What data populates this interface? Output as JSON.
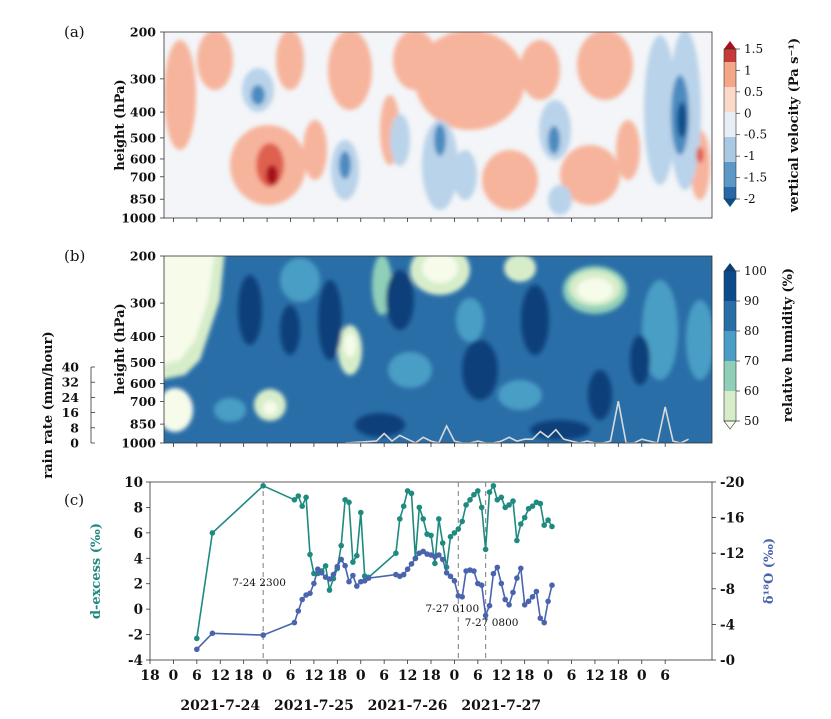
{
  "figure": {
    "panel_a_label": "(a)",
    "panel_b_label": "(b)",
    "panel_c_label": "(c)"
  },
  "chart_data": [
    {
      "id": "a",
      "type": "heatmap",
      "quantity": "vertical velocity",
      "ylabel": "height (hPa)",
      "yticks": [
        "200",
        "300",
        "400",
        "500",
        "600",
        "700",
        "850",
        "1000"
      ],
      "colorbar_label": "vertical velocity (Pa s⁻¹)",
      "colorbar_ticks": [
        "1.5",
        "1",
        "0.5",
        "0",
        "-0.5",
        "-1",
        "-1.5",
        "-2"
      ],
      "colorbar_range": [
        -2,
        1.5
      ],
      "colors": {
        "strong_up": "#0b4f8a",
        "up": "#4c8bc0",
        "weak_up": "#b9d3ea",
        "neutral": "#f3f5f8",
        "weak_down": "#f7b49c",
        "down": "#e0614f",
        "strong_down": "#a8101f"
      }
    },
    {
      "id": "b",
      "type": "heatmap",
      "quantity": "relative humidity",
      "ylabel": "height (hPa)",
      "yticks": [
        "200",
        "300",
        "400",
        "500",
        "600",
        "700",
        "850",
        "1000"
      ],
      "colorbar_label": "relative humidity (%)",
      "colorbar_ticks": [
        "100",
        "90",
        "80",
        "70",
        "60",
        "50"
      ],
      "colorbar_range": [
        50,
        100
      ],
      "rain_axis_label": "rain rate (mm/hour)",
      "rain_ticks": [
        "40",
        "32",
        "24",
        "16",
        "8",
        "0"
      ],
      "rain_range": [
        0,
        40
      ],
      "rain_series": {
        "x_hours": [
          44,
          48,
          52,
          54,
          56,
          58,
          60,
          62,
          64,
          66,
          68,
          70,
          72,
          74,
          76,
          78,
          80,
          82,
          84,
          86,
          88,
          90,
          92,
          94,
          96,
          98,
          100,
          102,
          104,
          106,
          108,
          110,
          112,
          114,
          116,
          118,
          120,
          122,
          124,
          126,
          128,
          130,
          132
        ],
        "values": [
          0,
          0.5,
          1,
          5,
          1,
          4,
          2,
          0,
          3,
          1,
          0,
          9,
          1,
          0,
          0,
          1,
          0,
          0,
          1,
          3,
          1,
          2,
          2,
          6,
          3,
          7,
          2,
          1,
          0,
          1,
          0,
          0,
          1,
          22,
          0,
          0,
          2,
          1,
          0,
          19,
          1,
          0,
          2
        ]
      },
      "colors": {
        "rh100": "#083f7a",
        "rh90": "#2a6ea8",
        "rh80": "#4a9ec5",
        "rh70": "#8fcfb8",
        "rh60": "#d7edca",
        "rh50": "#f6fbea",
        "rain_line": "#d9d9d9"
      }
    },
    {
      "id": "c",
      "type": "line",
      "y_left_label": "d-excess (‰)",
      "y_right_label": "δ¹⁸O (‰)",
      "ylim_left": [
        -4,
        10
      ],
      "ylim_right": [
        -20,
        0
      ],
      "yticks_left": [
        "10",
        "8",
        "6",
        "4",
        "2",
        "0",
        "-2",
        "-4"
      ],
      "yticks_right": [
        "-20",
        "-16",
        "-12",
        "-8",
        "-4",
        "-0"
      ],
      "xlim_hours": [
        -6,
        138
      ],
      "xticks": [
        {
          "h": -6,
          "label": "18"
        },
        {
          "h": 0,
          "label": "0"
        },
        {
          "h": 6,
          "label": "6"
        },
        {
          "h": 12,
          "label": "12"
        },
        {
          "h": 18,
          "label": "18"
        },
        {
          "h": 24,
          "label": "0"
        },
        {
          "h": 30,
          "label": "6"
        },
        {
          "h": 36,
          "label": "12"
        },
        {
          "h": 42,
          "label": "18"
        },
        {
          "h": 48,
          "label": "0"
        },
        {
          "h": 54,
          "label": "6"
        },
        {
          "h": 60,
          "label": "12"
        },
        {
          "h": 66,
          "label": "18"
        },
        {
          "h": 72,
          "label": "0"
        },
        {
          "h": 78,
          "label": "6"
        },
        {
          "h": 84,
          "label": "12"
        },
        {
          "h": 90,
          "label": "18"
        },
        {
          "h": 96,
          "label": "0"
        },
        {
          "h": 102,
          "label": "6"
        },
        {
          "h": 108,
          "label": "12"
        },
        {
          "h": 114,
          "label": "18"
        },
        {
          "h": 120,
          "label": "0"
        },
        {
          "h": 126,
          "label": "6"
        }
      ],
      "date_labels": [
        {
          "h": 12,
          "label": "2021-7-24"
        },
        {
          "h": 36,
          "label": "2021-7-25"
        },
        {
          "h": 60,
          "label": "2021-7-26"
        },
        {
          "h": 84,
          "label": "2021-7-27"
        }
      ],
      "events": [
        {
          "h": 23,
          "label": "7-24 2300"
        },
        {
          "h": 73,
          "label": "7-27 0100"
        },
        {
          "h": 80,
          "label": "7-27 0800"
        }
      ],
      "series": [
        {
          "name": "d-excess",
          "axis": "left",
          "color": "#1f8a80",
          "x_hours": [
            6,
            10,
            23,
            31,
            32,
            33,
            34,
            35,
            36,
            37,
            38,
            39,
            40,
            41,
            42,
            43,
            44,
            45,
            46,
            47,
            48,
            49,
            50,
            57,
            58,
            59,
            60,
            61,
            62,
            63,
            64,
            65,
            66,
            67,
            68,
            69,
            70,
            71,
            72,
            73,
            74,
            75,
            76,
            77,
            78,
            79,
            80,
            81,
            82,
            83,
            84,
            85,
            86,
            87,
            88,
            89,
            90,
            91,
            92,
            93,
            94,
            95,
            96,
            97
          ],
          "values": [
            -2.3,
            6.0,
            9.7,
            8.6,
            8.9,
            8.1,
            8.8,
            4.3,
            2.8,
            2.8,
            3.0,
            3.4,
            1.5,
            2.4,
            3.2,
            5.0,
            8.6,
            8.4,
            3.7,
            4.2,
            7.6,
            2.6,
            2.5,
            4.4,
            7.1,
            8.1,
            9.3,
            9.1,
            4.0,
            8.0,
            7.1,
            5.9,
            5.8,
            3.6,
            7.1,
            5.2,
            3.3,
            5.7,
            6.0,
            6.3,
            6.9,
            8.2,
            8.6,
            9.0,
            9.3,
            8.0,
            4.7,
            9.2,
            9.7,
            8.6,
            8.8,
            8.0,
            8.2,
            8.5,
            5.4,
            6.7,
            7.2,
            7.9,
            8.1,
            8.4,
            8.3,
            6.6,
            7.0,
            6.5
          ]
        },
        {
          "name": "δ¹⁸O",
          "axis": "right",
          "color": "#4a63ae",
          "x_hours": [
            6,
            10,
            23,
            31,
            32,
            33,
            34,
            35,
            36,
            37,
            38,
            39,
            40,
            41,
            42,
            43,
            44,
            45,
            46,
            47,
            48,
            49,
            50,
            57,
            58,
            59,
            60,
            61,
            62,
            63,
            64,
            65,
            66,
            67,
            68,
            69,
            70,
            71,
            72,
            73,
            74,
            75,
            76,
            77,
            78,
            79,
            80,
            81,
            82,
            83,
            84,
            85,
            86,
            87,
            88,
            89,
            90,
            91,
            92,
            93,
            94,
            95,
            96,
            97
          ],
          "values": [
            -1.2,
            -3.0,
            -2.8,
            -4.2,
            -5.5,
            -6.8,
            -7.3,
            -7.5,
            -8.6,
            -10.2,
            -9.8,
            -9.3,
            -9.1,
            -9.6,
            -10.5,
            -11.3,
            -10.6,
            -8.8,
            -9.5,
            -8.3,
            -8.8,
            -8.9,
            -9.2,
            -9.6,
            -9.4,
            -9.6,
            -10.2,
            -10.8,
            -11.4,
            -12.0,
            -12.2,
            -11.9,
            -11.8,
            -11.6,
            -11.8,
            -11.3,
            -9.8,
            -9.4,
            -8.9,
            -7.2,
            -7.1,
            -10.0,
            -10.1,
            -10.0,
            -8.6,
            -8.4,
            -5.0,
            -6.1,
            -9.7,
            -10.4,
            -8.6,
            -6.8,
            -6.2,
            -7.6,
            -9.2,
            -10.3,
            -6.2,
            -6.6,
            -7.1,
            -7.7,
            -4.7,
            -4.2,
            -6.6,
            -8.4
          ]
        }
      ]
    }
  ]
}
